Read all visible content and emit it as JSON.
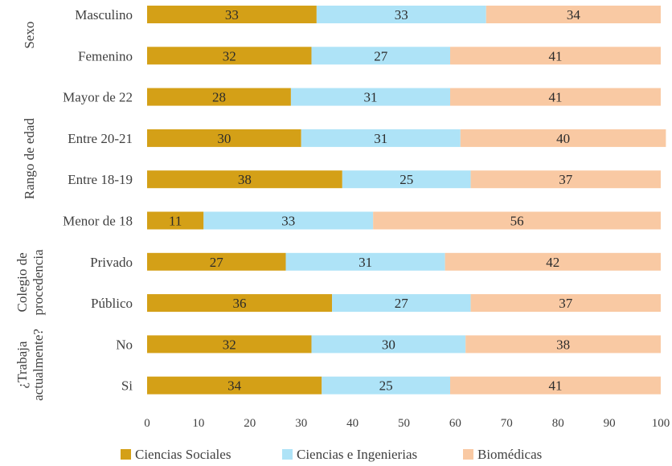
{
  "chart_data": {
    "type": "bar",
    "orientation": "horizontal",
    "stacked": true,
    "categories": [
      "Masculino",
      "Femenino",
      "Mayor de 22",
      "Entre 20-21",
      "Entre 18-19",
      "Menor de 18",
      "Privado",
      "Público",
      "No",
      "Si"
    ],
    "groups": [
      {
        "label": "Sexo",
        "lines": [
          "Sexo"
        ],
        "categories": [
          "Masculino",
          "Femenino"
        ]
      },
      {
        "label": "Rango de edad",
        "lines": [
          "Rango de edad"
        ],
        "categories": [
          "Mayor de 22",
          "Entre 20-21",
          "Entre 18-19",
          "Menor de 18"
        ]
      },
      {
        "label": "Colegio de procedencia",
        "lines": [
          "Colegio de",
          "procedencia"
        ],
        "categories": [
          "Privado",
          "Público"
        ]
      },
      {
        "label": "¿Trabaja actualmente?",
        "lines": [
          "¿Trabaja",
          "actualmente?"
        ],
        "categories": [
          "No",
          "Si"
        ]
      }
    ],
    "series": [
      {
        "name": "Ciencias Sociales",
        "color": "#d4a017",
        "values": [
          33,
          32,
          28,
          30,
          38,
          11,
          27,
          36,
          32,
          34
        ]
      },
      {
        "name": "Ciencias e Ingenierias",
        "color": "#aee3f7",
        "values": [
          33,
          27,
          31,
          31,
          25,
          33,
          31,
          27,
          30,
          25
        ]
      },
      {
        "name": "Biomédicas",
        "color": "#f9c9a3",
        "values": [
          34,
          41,
          41,
          40,
          37,
          56,
          42,
          37,
          38,
          41
        ]
      }
    ],
    "xlim": [
      0,
      100
    ],
    "xticks": [
      0,
      10,
      20,
      30,
      40,
      50,
      60,
      70,
      80,
      90,
      100
    ],
    "grid": false,
    "legend_position": "bottom"
  }
}
